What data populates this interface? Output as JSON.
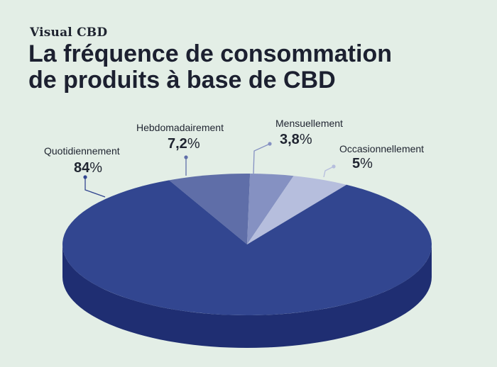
{
  "brand": "Visual CBD",
  "title": {
    "line1": "La fréquence de consommation",
    "line2": "de produits à base de CBD"
  },
  "colors": {
    "background": "#e3eee6",
    "quotidiennement": "#324690",
    "quotidiennement_side": "#1f2e72",
    "hebdomadairement": "#5f6ea8",
    "mensuellement": "#8591c2",
    "occasionnellement": "#b6bedd"
  },
  "chart_data": {
    "type": "pie",
    "title": "La fréquence de consommation de produits à base de CBD",
    "slices": [
      {
        "label": "Quotidiennement",
        "value": 84,
        "display": "84",
        "unit": "%"
      },
      {
        "label": "Hebdomadairement",
        "value": 7.2,
        "display": "7,2",
        "unit": "%"
      },
      {
        "label": "Mensuellement",
        "value": 3.8,
        "display": "3,8",
        "unit": "%"
      },
      {
        "label": "Occasionnellement",
        "value": 5,
        "display": "5",
        "unit": "%"
      }
    ]
  }
}
